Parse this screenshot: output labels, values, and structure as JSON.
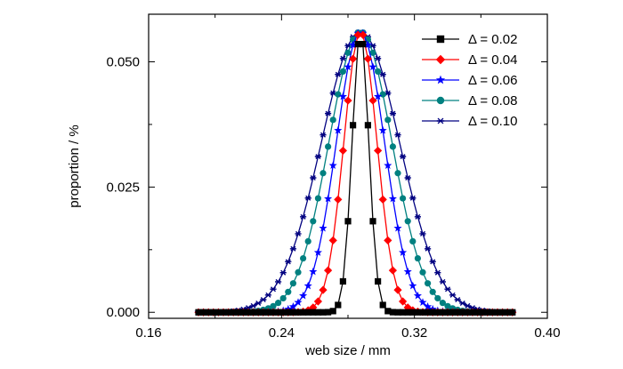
{
  "chart_data": {
    "type": "line",
    "xlabel": "web size / mm",
    "ylabel": "proportion / %",
    "xlim": [
      0.16,
      0.4
    ],
    "ylim": [
      -0.0012,
      0.0595
    ],
    "xticks": [
      0.16,
      0.24,
      0.32,
      0.4
    ],
    "xtick_labels": [
      "0.16",
      "0.24",
      "0.32",
      "0.40"
    ],
    "yticks": [
      0.0,
      0.025,
      0.05
    ],
    "ytick_labels": [
      "0.000",
      "0.025",
      "0.050"
    ],
    "grid": false,
    "legend_position": "top-right",
    "x_range": [
      0.19,
      0.38
    ],
    "x_step": 0.003,
    "peak": 0.056,
    "center": 0.2875,
    "series": [
      {
        "name": "Δ = 0.02",
        "color": "#000000",
        "marker": "square",
        "sigma": 0.005
      },
      {
        "name": "Δ = 0.04",
        "color": "#ff0000",
        "marker": "diamond",
        "sigma": 0.01
      },
      {
        "name": "Δ = 0.06",
        "color": "#0000ff",
        "marker": "star",
        "sigma": 0.0145
      },
      {
        "name": "Δ = 0.08",
        "color": "#008080",
        "marker": "circle",
        "sigma": 0.019
      },
      {
        "name": "Δ = 0.10",
        "color": "#000080",
        "marker": "asterisk",
        "sigma": 0.0235
      }
    ]
  }
}
